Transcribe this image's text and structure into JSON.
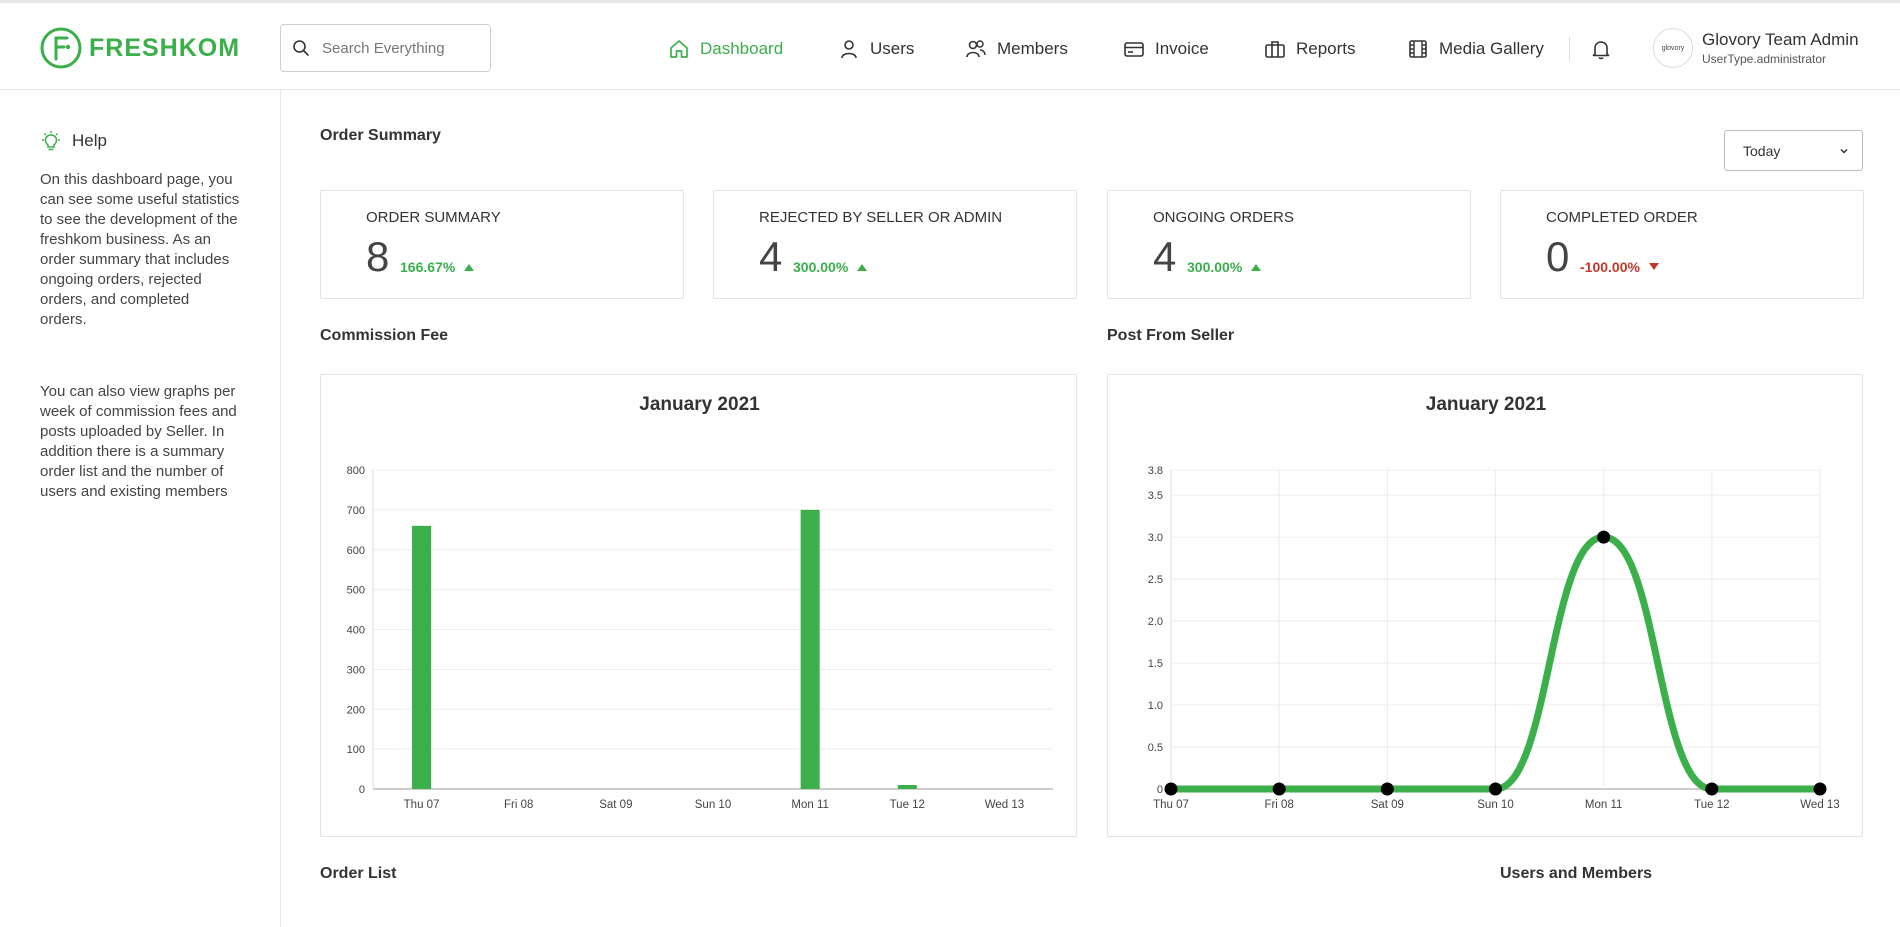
{
  "brand": {
    "name": "FRESHKOM",
    "color": "#3aaf4a"
  },
  "search": {
    "placeholder": "Search Everything"
  },
  "nav": {
    "items": [
      {
        "label": "Dashboard",
        "icon": "home-icon",
        "active": true
      },
      {
        "label": "Users",
        "icon": "user-icon",
        "active": false
      },
      {
        "label": "Members",
        "icon": "members-icon",
        "active": false
      },
      {
        "label": "Invoice",
        "icon": "card-icon",
        "active": false
      },
      {
        "label": "Reports",
        "icon": "briefcase-icon",
        "active": false
      },
      {
        "label": "Media Gallery",
        "icon": "film-icon",
        "active": false
      }
    ]
  },
  "user": {
    "avatar_text": "glovory",
    "name": "Glovory Team Admin",
    "type": "UserType.administrator"
  },
  "help": {
    "title": "Help",
    "paragraph1": "On this dashboard page, you can see some useful statistics to see the development of the freshkom business. As an order summary that includes ongoing orders, rejected orders, and completed orders.",
    "paragraph2": "You can also view graphs per week of commission fees and posts uploaded by Seller. In addition there is a summary order list and the number of users and existing members"
  },
  "main": {
    "order_summary_title": "Order Summary",
    "period_select": "Today",
    "commission_title": "Commission Fee",
    "post_title": "Post From Seller",
    "order_list_title": "Order List",
    "users_members_title": "Users and Members"
  },
  "stats": [
    {
      "label": "ORDER SUMMARY",
      "value": "8",
      "change": "166.67%",
      "direction": "up"
    },
    {
      "label": "REJECTED BY SELLER OR ADMIN",
      "value": "4",
      "change": "300.00%",
      "direction": "up"
    },
    {
      "label": "ONGOING ORDERS",
      "value": "4",
      "change": "300.00%",
      "direction": "up"
    },
    {
      "label": "COMPLETED ORDER",
      "value": "0",
      "change": "-100.00%",
      "direction": "down"
    }
  ],
  "colors": {
    "up": "#3aaf4a",
    "down": "#c0392b",
    "series": "#3aaf4a",
    "point": "#000000"
  },
  "chart_data": [
    {
      "type": "bar",
      "title": "January 2021",
      "categories": [
        "Thu 07",
        "Fri 08",
        "Sat 09",
        "Sun 10",
        "Mon 11",
        "Tue 12",
        "Wed 13"
      ],
      "values": [
        660,
        0,
        0,
        0,
        700,
        10,
        0
      ],
      "ylim": [
        0,
        800
      ],
      "yticks": [
        0,
        100,
        200,
        300,
        400,
        500,
        600,
        700,
        800
      ],
      "grid": true
    },
    {
      "type": "line",
      "title": "January 2021",
      "categories": [
        "Thu 07",
        "Fri 08",
        "Sat 09",
        "Sun 10",
        "Mon 11",
        "Tue 12",
        "Wed 13"
      ],
      "values": [
        0,
        0,
        0,
        0,
        3,
        0,
        0
      ],
      "ylim": [
        0,
        3.8
      ],
      "yticks": [
        0,
        0.5,
        1.0,
        1.5,
        2.0,
        2.5,
        3.0,
        3.5,
        3.8
      ],
      "ytick_labels": [
        "0",
        "0.5",
        "1.0",
        "1.5",
        "2.0",
        "2.5",
        "3.0",
        "3.5",
        "3.8"
      ],
      "grid": true
    }
  ]
}
